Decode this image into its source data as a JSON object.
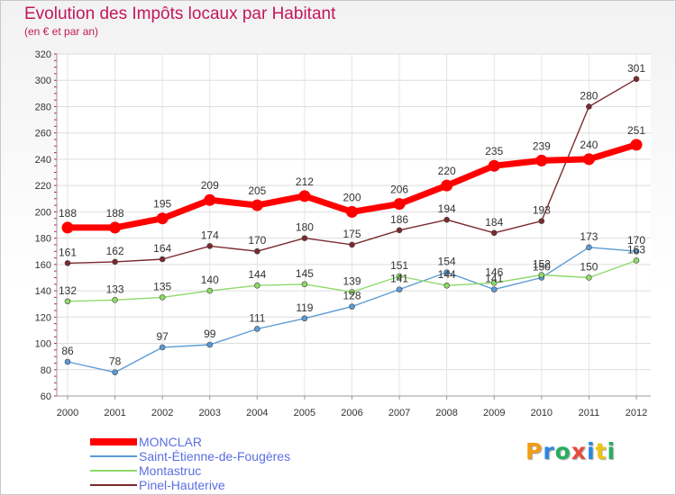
{
  "header": {
    "title": "Evolution des Impôts locaux par Habitant",
    "subtitle": "(en € et par an)"
  },
  "logo": {
    "text": "Proxiti",
    "letters": [
      "P",
      "r",
      "o",
      "x",
      "i",
      "t",
      "i"
    ],
    "colors": [
      "#f39c12",
      "#2e86de",
      "#27ae60",
      "#e74c3c",
      "#2e86de",
      "#f1c40f",
      "#27ae60"
    ]
  },
  "chart_data": {
    "type": "line",
    "title": "Evolution des Impôts locaux par Habitant",
    "subtitle": "(en € et par an)",
    "xlabel": "",
    "ylabel": "",
    "categories": [
      "2000",
      "2001",
      "2002",
      "2003",
      "2004",
      "2005",
      "2006",
      "2007",
      "2008",
      "2009",
      "2010",
      "2011",
      "2012"
    ],
    "ylim": [
      60,
      320
    ],
    "yticks": [
      60,
      80,
      100,
      120,
      140,
      160,
      180,
      200,
      220,
      240,
      260,
      280,
      300,
      320
    ],
    "grid": true,
    "legend_position": "bottom-left",
    "series": [
      {
        "name": "MONCLAR",
        "color": "#ff0000",
        "bold": true,
        "values": [
          188,
          188,
          195,
          209,
          205,
          212,
          200,
          206,
          220,
          235,
          239,
          240,
          251
        ]
      },
      {
        "name": "Saint-Étienne-de-Fougères",
        "color": "#5b9bd5",
        "values": [
          86,
          78,
          97,
          99,
          111,
          119,
          128,
          141,
          154,
          141,
          150,
          173,
          170
        ]
      },
      {
        "name": "Montastruc",
        "color": "#8ed96a",
        "values": [
          132,
          133,
          135,
          140,
          144,
          145,
          139,
          151,
          144,
          146,
          152,
          150,
          163
        ]
      },
      {
        "name": "Pinel-Hauterive",
        "color": "#7a2a30",
        "values": [
          161,
          162,
          164,
          174,
          170,
          180,
          175,
          186,
          194,
          184,
          193,
          280,
          301
        ]
      }
    ]
  }
}
